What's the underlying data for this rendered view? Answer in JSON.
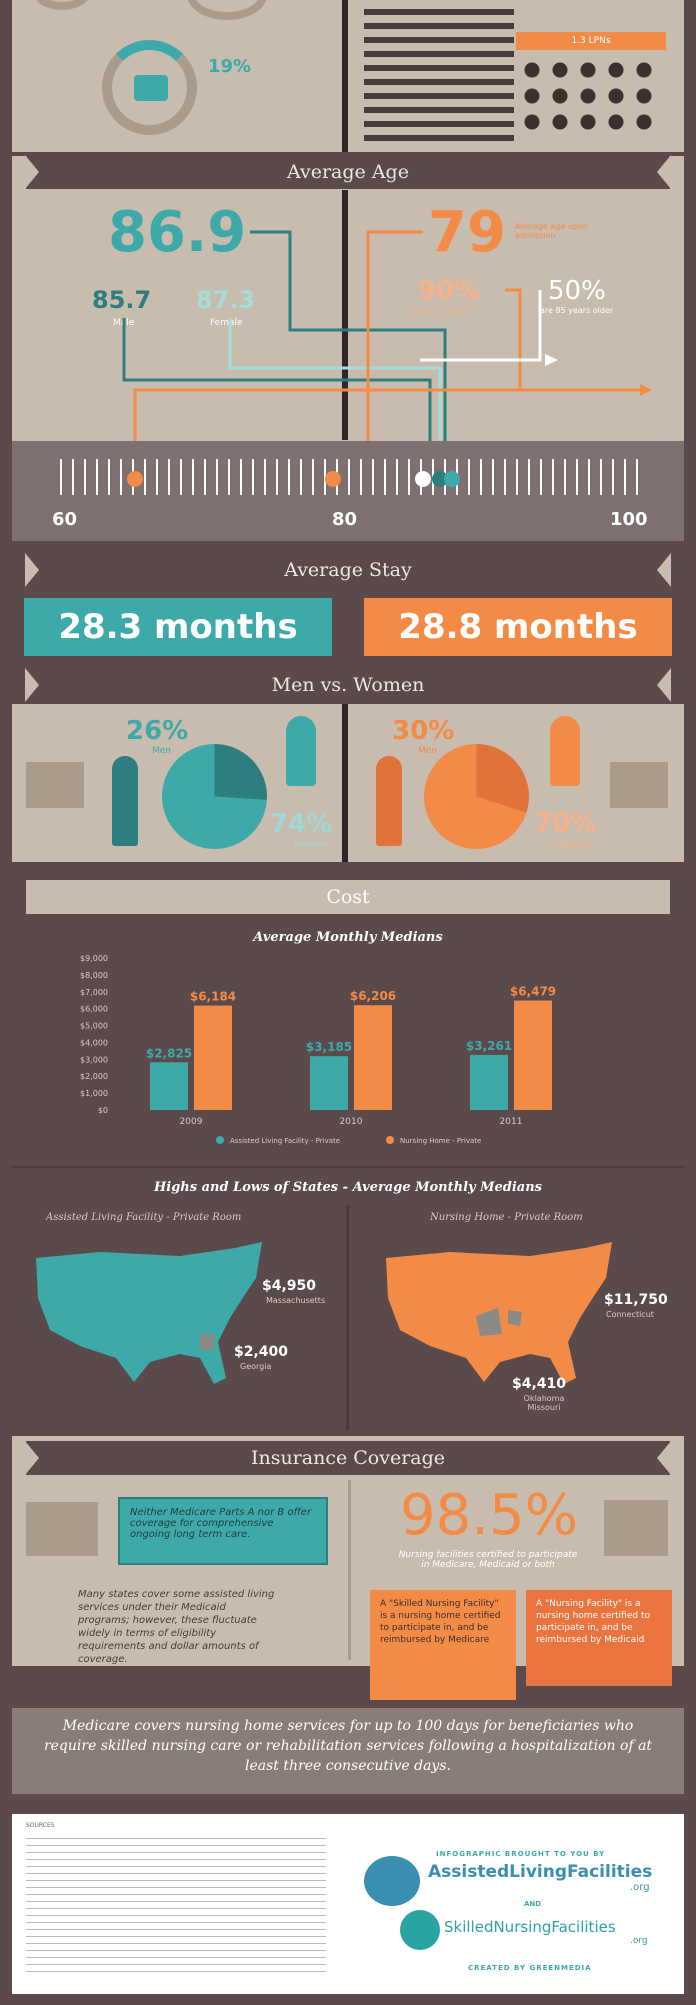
{
  "top": {
    "stat_pct": "19%",
    "stat_label": "",
    "pill_label": "1.3 LPNs"
  },
  "age": {
    "title": "Average Age",
    "left_main": "86.9",
    "left_a": "85.7",
    "left_a_label": "Male",
    "left_b": "87.3",
    "left_b_label": "Female",
    "right_main": "79",
    "right_main_label": "Average age upon admission",
    "right_a": "90%",
    "right_a_label": "are 65 or older",
    "right_b": "50%",
    "right_b_label": "are 85 years older",
    "scale": [
      "60",
      "80",
      "100"
    ]
  },
  "stay": {
    "title": "Average Stay",
    "left": "28.3 months",
    "right": "28.8 months"
  },
  "gender": {
    "title": "Men vs. Women",
    "left_men": "26%",
    "left_men_label": "Men",
    "left_women": "74%",
    "left_women_label": "Women",
    "right_men": "30%",
    "right_men_label": "Men",
    "right_women": "70%",
    "right_women_label": "Women"
  },
  "cost": {
    "title": "Cost",
    "chart_title": "Average Monthly Medians",
    "map_title": "Highs and Lows of States - Average Monthly Medians",
    "map_left_label": "Assisted Living Facility - Private Room",
    "map_right_label": "Nursing Home - Private Room",
    "left_high": "$4,950",
    "left_high_state": "Massachusetts",
    "left_low": "$2,400",
    "left_low_state": "Georgia",
    "right_high": "$11,750",
    "right_high_state": "Connecticut",
    "right_low": "$4,410",
    "right_low_state": "Oklahoma Missouri"
  },
  "chart_data": {
    "type": "bar",
    "categories": [
      "2009",
      "2010",
      "2011"
    ],
    "series": [
      {
        "name": "Assisted Living Facility - Private",
        "values": [
          2825,
          3185,
          3261
        ],
        "color": "#3ea9a9"
      },
      {
        "name": "Nursing Home - Private",
        "values": [
          6184,
          6206,
          6479
        ],
        "color": "#f38b47"
      }
    ],
    "value_labels": [
      [
        "$2,825",
        "$3,185",
        "$3,261"
      ],
      [
        "$6,184",
        "$6,206",
        "$6,479"
      ]
    ],
    "yticks": [
      "$9,000",
      "$8,000",
      "$7,000",
      "$6,000",
      "$5,000",
      "$4,000",
      "$3,000",
      "$2,000",
      "$1,000",
      "$0"
    ],
    "ylim": [
      0,
      9000
    ]
  },
  "insurance": {
    "title": "Insurance Coverage",
    "medicare_note": "Neither Medicare Parts A nor B offer coverage for comprehensive ongoing long term care.",
    "states_note": "Many states cover some assisted living services under their Medicaid programs; however, these fluctuate widely in terms of eligibility requirements and dollar amounts of coverage.",
    "big_pct": "98.5%",
    "big_label": "Nursing facilities certified to participate in Medicare, Medicaid or both",
    "snf_box": "A \"Skilled Nursing Facility\" is a nursing home certified to participate in, and be reimbursed by Medicare",
    "nf_box": "A \"Nursing Facility\" is a nursing home certified to participate in, and be reimbursed by Medicaid"
  },
  "footer": {
    "medicare_banner": "Medicare covers nursing home services for up to 100 days for beneficiaries who require skilled nursing care or rehabilitation services following a hospitalization of at least three consecutive days.",
    "sources_label": "SOURCES",
    "brought": "INFOGRAPHIC BROUGHT TO YOU BY",
    "brand1": "AssistedLivingFacilities",
    "brand1_tld": ".org",
    "and": "AND",
    "brand2": "SkilledNursingFacilities",
    "brand2_tld": ".org",
    "created": "CREATED BY GREENMEDIA"
  },
  "colors": {
    "teal": "#3ea9a9",
    "orange": "#f38b47",
    "brown": "#5b4a4c",
    "tan": "#c8bcae"
  }
}
